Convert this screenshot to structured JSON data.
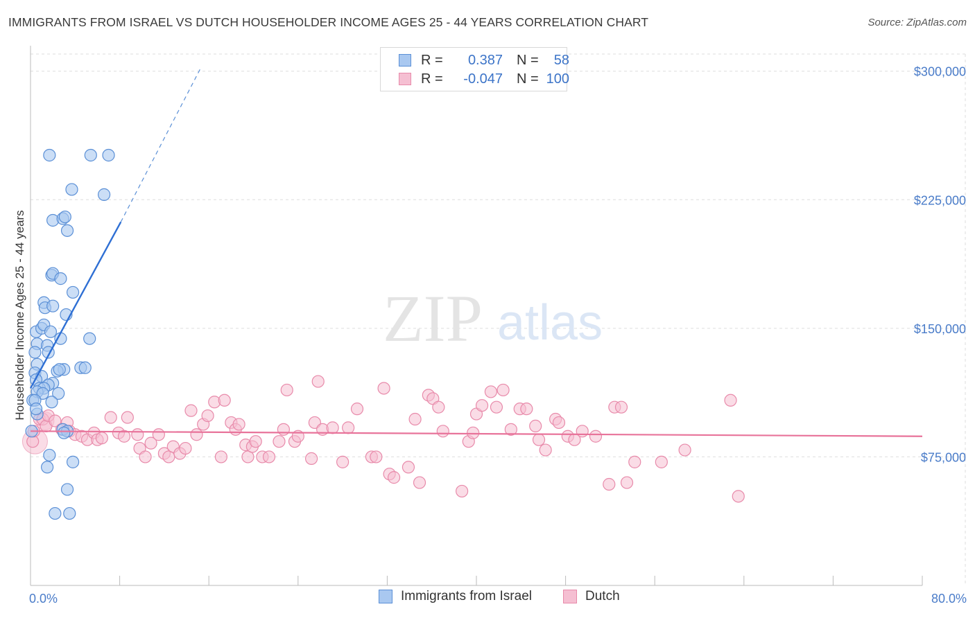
{
  "title": "IMMIGRANTS FROM ISRAEL VS DUTCH HOUSEHOLDER INCOME AGES 25 - 44 YEARS CORRELATION CHART",
  "source": "Source: ZipAtlas.com",
  "watermark": {
    "zip": "ZIP",
    "atlas": "atlas"
  },
  "colors": {
    "blue_fill": "#a9c8f0",
    "blue_stroke": "#5a8fd6",
    "blue_line": "#2e6fd4",
    "pink_fill": "#f5bfd2",
    "pink_stroke": "#e88aaa",
    "pink_line": "#e8739a",
    "grid": "#dddddd",
    "axis_text": "#4a7cc9"
  },
  "legend": {
    "rows": [
      {
        "r_label": "R =",
        "r_value": "0.387",
        "n_label": "N =",
        "n_value": "58"
      },
      {
        "r_label": "R =",
        "r_value": "-0.047",
        "n_label": "N =",
        "n_value": "100"
      }
    ]
  },
  "bottom_legend": {
    "israel": "Immigrants from Israel",
    "dutch": "Dutch"
  },
  "chart_data": {
    "type": "scatter",
    "title": "IMMIGRANTS FROM ISRAEL VS DUTCH HOUSEHOLDER INCOME AGES 25 - 44 YEARS CORRELATION CHART",
    "xlabel": "",
    "ylabel": "Householder Income Ages 25 - 44 years",
    "xlim": [
      0,
      80
    ],
    "ylim": [
      0,
      310000
    ],
    "x_tick_labels": [
      "0.0%",
      "80.0%"
    ],
    "y_ticks": [
      75000,
      150000,
      225000,
      300000
    ],
    "y_tick_labels": [
      "$75,000",
      "$150,000",
      "$225,000",
      "$300,000"
    ],
    "grid": true,
    "series": [
      {
        "name": "Immigrants from Israel",
        "r": 0.387,
        "n": 58,
        "trend": {
          "x0": 0.0,
          "y0": 115000,
          "x1": 8.1,
          "y1": 212000,
          "x_dash_end": 15.2,
          "y_dash_end": 301000
        },
        "points": [
          [
            1.7,
            251000
          ],
          [
            5.4,
            251000
          ],
          [
            7.0,
            251000
          ],
          [
            3.7,
            231000
          ],
          [
            6.6,
            228000
          ],
          [
            2.0,
            213000
          ],
          [
            2.9,
            214000
          ],
          [
            3.1,
            215000
          ],
          [
            3.3,
            207000
          ],
          [
            1.9,
            181000
          ],
          [
            2.0,
            182000
          ],
          [
            2.7,
            179000
          ],
          [
            3.8,
            171000
          ],
          [
            1.2,
            165000
          ],
          [
            1.3,
            162000
          ],
          [
            2.0,
            163000
          ],
          [
            3.2,
            158000
          ],
          [
            0.5,
            148000
          ],
          [
            1.0,
            150000
          ],
          [
            1.2,
            152000
          ],
          [
            1.8,
            148000
          ],
          [
            0.6,
            141000
          ],
          [
            1.5,
            140000
          ],
          [
            2.7,
            144000
          ],
          [
            5.3,
            144000
          ],
          [
            0.4,
            136000
          ],
          [
            1.6,
            136000
          ],
          [
            0.6,
            129000
          ],
          [
            3.0,
            126000
          ],
          [
            2.4,
            125000
          ],
          [
            2.6,
            126000
          ],
          [
            4.5,
            127000
          ],
          [
            4.9,
            127000
          ],
          [
            0.4,
            124000
          ],
          [
            1.0,
            122000
          ],
          [
            0.5,
            120000
          ],
          [
            2.0,
            118000
          ],
          [
            1.6,
            117000
          ],
          [
            0.8,
            115000
          ],
          [
            1.2,
            115000
          ],
          [
            0.6,
            113000
          ],
          [
            1.1,
            112000
          ],
          [
            2.5,
            112000
          ],
          [
            0.2,
            108000
          ],
          [
            0.4,
            108000
          ],
          [
            1.9,
            107000
          ],
          [
            0.6,
            100000
          ],
          [
            2.9,
            91000
          ],
          [
            3.3,
            90000
          ],
          [
            3.0,
            89000
          ],
          [
            1.7,
            76000
          ],
          [
            1.5,
            69000
          ],
          [
            3.8,
            72000
          ],
          [
            3.3,
            56000
          ],
          [
            2.2,
            42000
          ],
          [
            3.5,
            42000
          ],
          [
            0.1,
            90000
          ],
          [
            0.5,
            103000
          ]
        ]
      },
      {
        "name": "Dutch",
        "r": -0.047,
        "n": 100,
        "trend": {
          "x0": 0.0,
          "y0": 90000,
          "x1": 80.0,
          "y1": 87000
        },
        "points": [
          [
            0.2,
            84000
          ],
          [
            0.3,
            90000
          ],
          [
            0.8,
            97000
          ],
          [
            1.1,
            97000
          ],
          [
            1.4,
            93000
          ],
          [
            1.6,
            99000
          ],
          [
            2.2,
            96000
          ],
          [
            3.3,
            95000
          ],
          [
            2.8,
            91000
          ],
          [
            3.5,
            90000
          ],
          [
            4.0,
            88000
          ],
          [
            4.6,
            87000
          ],
          [
            5.1,
            85000
          ],
          [
            5.7,
            89000
          ],
          [
            6.0,
            85000
          ],
          [
            6.4,
            86000
          ],
          [
            7.2,
            98000
          ],
          [
            7.9,
            89000
          ],
          [
            8.4,
            87000
          ],
          [
            8.7,
            98000
          ],
          [
            9.6,
            88000
          ],
          [
            9.8,
            80000
          ],
          [
            10.3,
            75000
          ],
          [
            10.8,
            83000
          ],
          [
            11.5,
            88000
          ],
          [
            12.0,
            77000
          ],
          [
            12.4,
            75000
          ],
          [
            12.8,
            81000
          ],
          [
            13.4,
            77000
          ],
          [
            13.9,
            80000
          ],
          [
            14.4,
            102000
          ],
          [
            14.9,
            88000
          ],
          [
            15.5,
            94000
          ],
          [
            15.9,
            99000
          ],
          [
            16.5,
            107000
          ],
          [
            17.1,
            75000
          ],
          [
            17.4,
            108000
          ],
          [
            18.0,
            95000
          ],
          [
            18.4,
            91000
          ],
          [
            18.7,
            94000
          ],
          [
            19.3,
            82000
          ],
          [
            19.5,
            75000
          ],
          [
            19.9,
            81000
          ],
          [
            20.2,
            84000
          ],
          [
            20.8,
            75000
          ],
          [
            21.4,
            75000
          ],
          [
            22.3,
            84000
          ],
          [
            22.7,
            91000
          ],
          [
            23.0,
            114000
          ],
          [
            23.7,
            84000
          ],
          [
            24.0,
            87000
          ],
          [
            25.2,
            74000
          ],
          [
            25.5,
            95000
          ],
          [
            25.8,
            119000
          ],
          [
            26.2,
            91000
          ],
          [
            27.1,
            92000
          ],
          [
            28.0,
            72000
          ],
          [
            28.5,
            92000
          ],
          [
            29.3,
            103000
          ],
          [
            30.6,
            75000
          ],
          [
            31.0,
            75000
          ],
          [
            31.7,
            115000
          ],
          [
            32.2,
            65000
          ],
          [
            32.6,
            63000
          ],
          [
            33.9,
            69000
          ],
          [
            34.5,
            97000
          ],
          [
            34.9,
            60000
          ],
          [
            35.7,
            111000
          ],
          [
            36.1,
            109000
          ],
          [
            36.6,
            104000
          ],
          [
            37.0,
            90000
          ],
          [
            39.3,
            84000
          ],
          [
            39.7,
            89000
          ],
          [
            40.0,
            100000
          ],
          [
            40.5,
            105000
          ],
          [
            41.3,
            113000
          ],
          [
            41.8,
            104000
          ],
          [
            42.4,
            114000
          ],
          [
            43.1,
            91000
          ],
          [
            43.9,
            103000
          ],
          [
            44.5,
            103000
          ],
          [
            45.3,
            93000
          ],
          [
            45.6,
            85000
          ],
          [
            46.2,
            79000
          ],
          [
            47.1,
            97000
          ],
          [
            47.4,
            95000
          ],
          [
            48.2,
            87000
          ],
          [
            48.8,
            85000
          ],
          [
            49.5,
            90000
          ],
          [
            50.7,
            87000
          ],
          [
            52.4,
            104000
          ],
          [
            53.0,
            104000
          ],
          [
            51.9,
            59000
          ],
          [
            53.5,
            60000
          ],
          [
            54.2,
            72000
          ],
          [
            56.6,
            72000
          ],
          [
            58.7,
            79000
          ],
          [
            62.8,
            108000
          ],
          [
            63.5,
            52000
          ],
          [
            38.7,
            55000
          ]
        ]
      }
    ]
  }
}
